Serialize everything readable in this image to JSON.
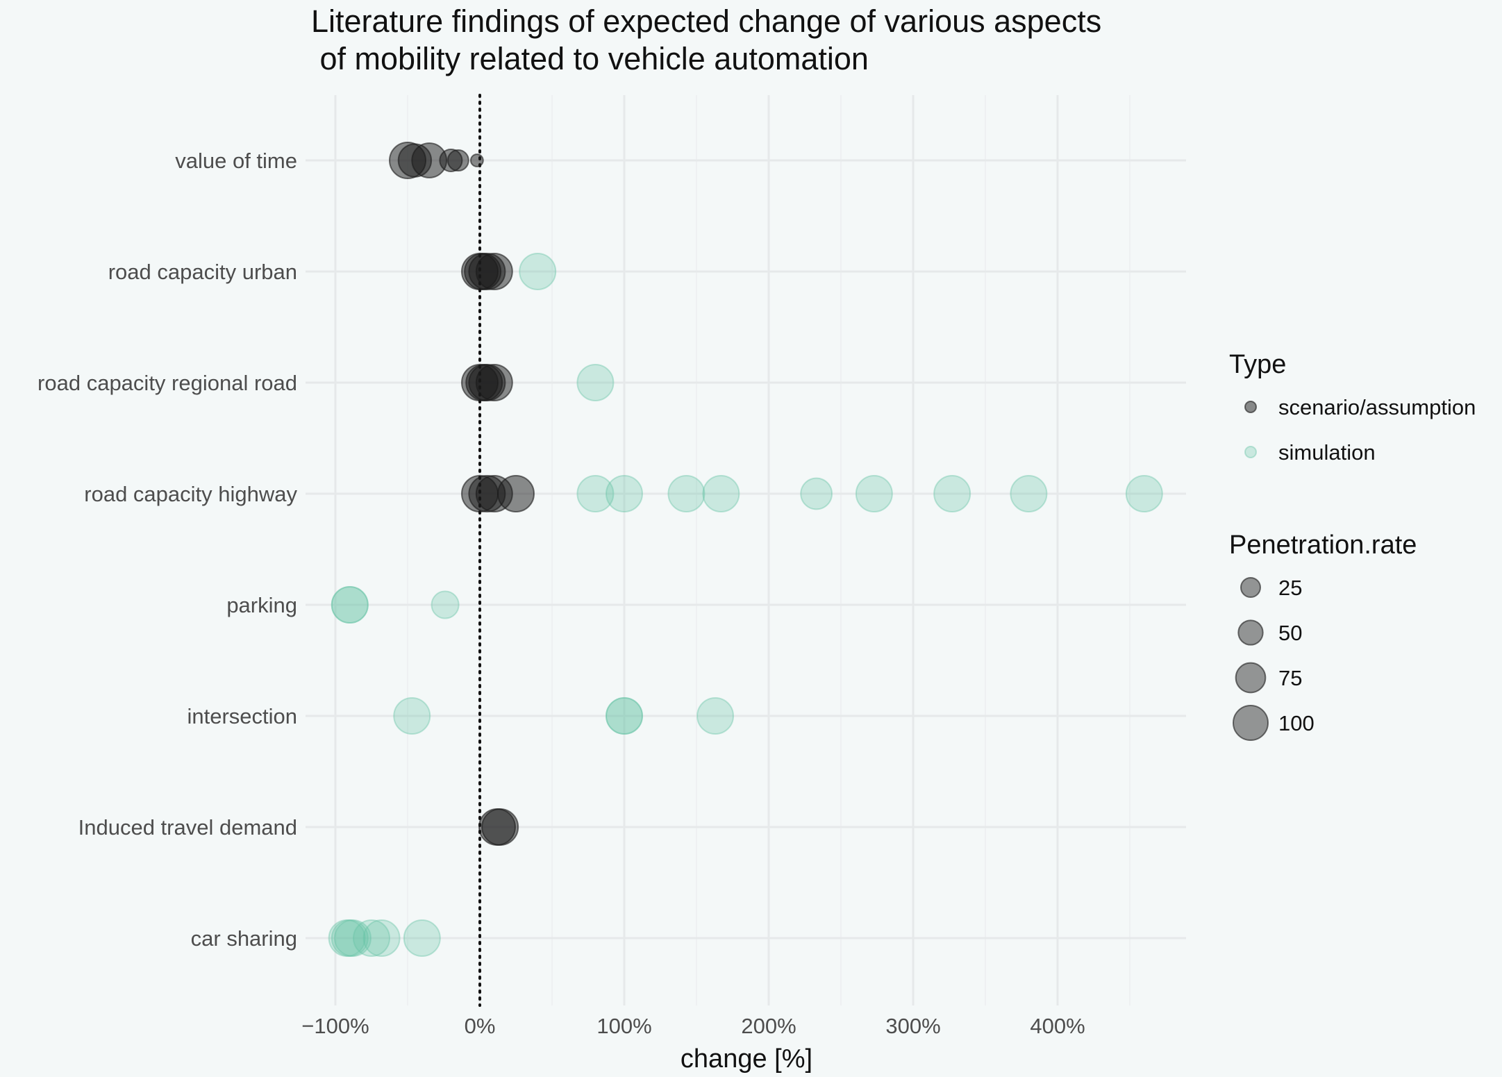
{
  "chart_data": {
    "type": "scatter",
    "title_lines": [
      "Literature findings of expected change of various aspects",
      " of mobility related to vehicle automation"
    ],
    "xlabel": "change [%]",
    "ylabel": "",
    "xlim": [
      -115,
      490
    ],
    "x_ticks": [
      -100,
      0,
      100,
      200,
      300,
      400
    ],
    "x_tick_labels": [
      "−100%",
      "0%",
      "100%",
      "200%",
      "300%",
      "400%"
    ],
    "reference_line": {
      "x": 0,
      "style": "dotted"
    },
    "grid": true,
    "categories": [
      "value of time",
      "road capacity urban",
      "road capacity regional road",
      "road capacity highway",
      "parking",
      "intersection",
      "Induced travel demand",
      "car sharing"
    ],
    "series": [
      {
        "name": "scenario/assumption",
        "color": "#1a1a1a",
        "opacity": 0.5,
        "points": [
          {
            "category": "value of time",
            "x": -50,
            "penetration": 100
          },
          {
            "category": "value of time",
            "x": -45,
            "penetration": 80
          },
          {
            "category": "value of time",
            "x": -35,
            "penetration": 90
          },
          {
            "category": "value of time",
            "x": -20,
            "penetration": 30
          },
          {
            "category": "value of time",
            "x": -15,
            "penetration": 25
          },
          {
            "category": "value of time",
            "x": -2,
            "penetration": 5
          },
          {
            "category": "road capacity urban",
            "x": 0,
            "penetration": 100
          },
          {
            "category": "road capacity urban",
            "x": 2,
            "penetration": 100
          },
          {
            "category": "road capacity urban",
            "x": 5,
            "penetration": 100
          },
          {
            "category": "road capacity urban",
            "x": 10,
            "penetration": 100
          },
          {
            "category": "road capacity regional road",
            "x": 0,
            "penetration": 100
          },
          {
            "category": "road capacity regional road",
            "x": 3,
            "penetration": 100
          },
          {
            "category": "road capacity regional road",
            "x": 5,
            "penetration": 100
          },
          {
            "category": "road capacity regional road",
            "x": 10,
            "penetration": 100
          },
          {
            "category": "road capacity highway",
            "x": 0,
            "penetration": 100
          },
          {
            "category": "road capacity highway",
            "x": 5,
            "penetration": 100
          },
          {
            "category": "road capacity highway",
            "x": 10,
            "penetration": 100
          },
          {
            "category": "road capacity highway",
            "x": 25,
            "penetration": 100
          },
          {
            "category": "Induced travel demand",
            "x": 12,
            "penetration": 100
          },
          {
            "category": "Induced travel demand",
            "x": 14,
            "penetration": 100
          }
        ]
      },
      {
        "name": "simulation",
        "color": "#66c2a5",
        "opacity": 0.3,
        "points": [
          {
            "category": "road capacity urban",
            "x": 40,
            "penetration": 100
          },
          {
            "category": "road capacity regional road",
            "x": 80,
            "penetration": 100
          },
          {
            "category": "road capacity highway",
            "x": 80,
            "penetration": 100
          },
          {
            "category": "road capacity highway",
            "x": 100,
            "penetration": 100
          },
          {
            "category": "road capacity highway",
            "x": 143,
            "penetration": 100
          },
          {
            "category": "road capacity highway",
            "x": 167,
            "penetration": 100
          },
          {
            "category": "road capacity highway",
            "x": 233,
            "penetration": 70
          },
          {
            "category": "road capacity highway",
            "x": 273,
            "penetration": 100
          },
          {
            "category": "road capacity highway",
            "x": 327,
            "penetration": 100
          },
          {
            "category": "road capacity highway",
            "x": 380,
            "penetration": 100
          },
          {
            "category": "road capacity highway",
            "x": 460,
            "penetration": 100
          },
          {
            "category": "parking",
            "x": -90,
            "penetration": 100
          },
          {
            "category": "parking",
            "x": -90,
            "penetration": 100
          },
          {
            "category": "parking",
            "x": -24,
            "penetration": 50
          },
          {
            "category": "intersection",
            "x": -47,
            "penetration": 100
          },
          {
            "category": "intersection",
            "x": 100,
            "penetration": 100
          },
          {
            "category": "intersection",
            "x": 100,
            "penetration": 100
          },
          {
            "category": "intersection",
            "x": 163,
            "penetration": 100
          },
          {
            "category": "car sharing",
            "x": -92,
            "penetration": 100
          },
          {
            "category": "car sharing",
            "x": -90,
            "penetration": 100
          },
          {
            "category": "car sharing",
            "x": -88,
            "penetration": 100
          },
          {
            "category": "car sharing",
            "x": -75,
            "penetration": 100
          },
          {
            "category": "car sharing",
            "x": -68,
            "penetration": 100
          },
          {
            "category": "car sharing",
            "x": -40,
            "penetration": 100
          }
        ]
      }
    ],
    "legend": {
      "placement": "right",
      "type_title": "Type",
      "type_entries": [
        {
          "label": "scenario/assumption",
          "color": "#1a1a1a",
          "opacity": 0.5
        },
        {
          "label": "simulation",
          "color": "#66c2a5",
          "opacity": 0.3
        }
      ],
      "size_title": "Penetration.rate",
      "size_entries": [
        {
          "label": "25",
          "penetration": 25
        },
        {
          "label": "50",
          "penetration": 50
        },
        {
          "label": "75",
          "penetration": 75
        },
        {
          "label": "100",
          "penetration": 100
        }
      ]
    }
  }
}
